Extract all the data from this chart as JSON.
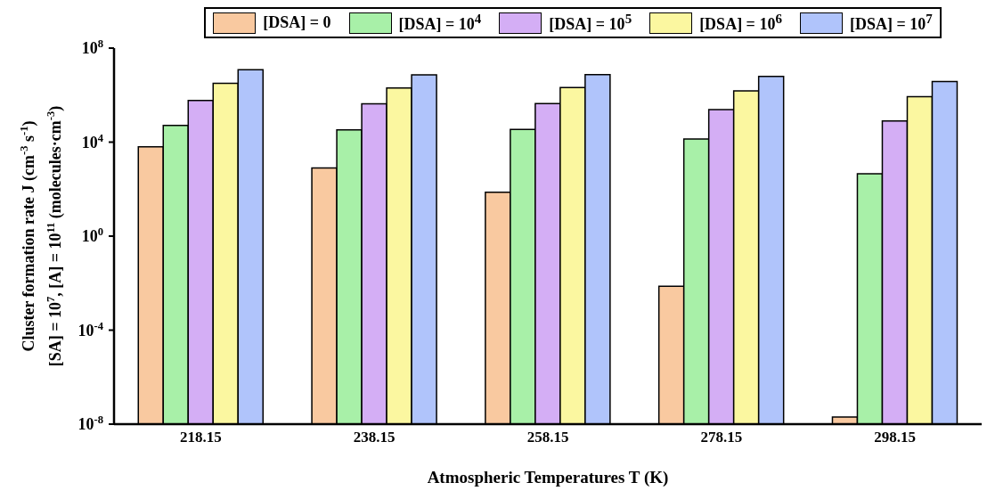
{
  "chart_data": {
    "type": "bar",
    "xlabel": "Atmospheric Temperatures T (K)",
    "ylabel": "Cluster formation rate J (cm$^{-3}$ s$^{-1}$)\n[SA] = 10$^{7}$, [A] = 10$^{11}$ (molecules·cm$^{-3}$)",
    "categories": [
      "218.15",
      "238.15",
      "258.15",
      "278.15",
      "298.15"
    ],
    "series": [
      {
        "name": "[DSA] = 0",
        "color": "#f9c9a0",
        "values": [
          6300,
          800,
          74,
          0.0074,
          2e-08
        ]
      },
      {
        "name": "[DSA] = 10$^{4}$",
        "color": "#a8f0a8",
        "values": [
          51000,
          33000,
          35000,
          13500,
          450
        ]
      },
      {
        "name": "[DSA] = 10$^{5}$",
        "color": "#d4aef5",
        "values": [
          590000,
          430000,
          440000,
          240000,
          80000
        ]
      },
      {
        "name": "[DSA] = 10$^{6}$",
        "color": "#fbf7a0",
        "values": [
          3200000,
          2000000,
          2100000,
          1500000,
          850000
        ]
      },
      {
        "name": "[DSA] = 10$^{7}$",
        "color": "#b0c4fb",
        "values": [
          12000000,
          7300000,
          7500000,
          6300000,
          3800000
        ]
      }
    ],
    "log": "y",
    "ylim": [
      1e-08,
      100000000.0
    ],
    "yticks": [
      {
        "value": 1e-08,
        "label": "10$^{-8}$"
      },
      {
        "value": 0.0001,
        "label": "10$^{-4}$"
      },
      {
        "value": 1,
        "label": "10$^{0}$"
      },
      {
        "value": 10000,
        "label": "10$^{4}$"
      },
      {
        "value": 100000000,
        "label": "10$^{8}$"
      }
    ],
    "grid": false,
    "legend": "top"
  }
}
